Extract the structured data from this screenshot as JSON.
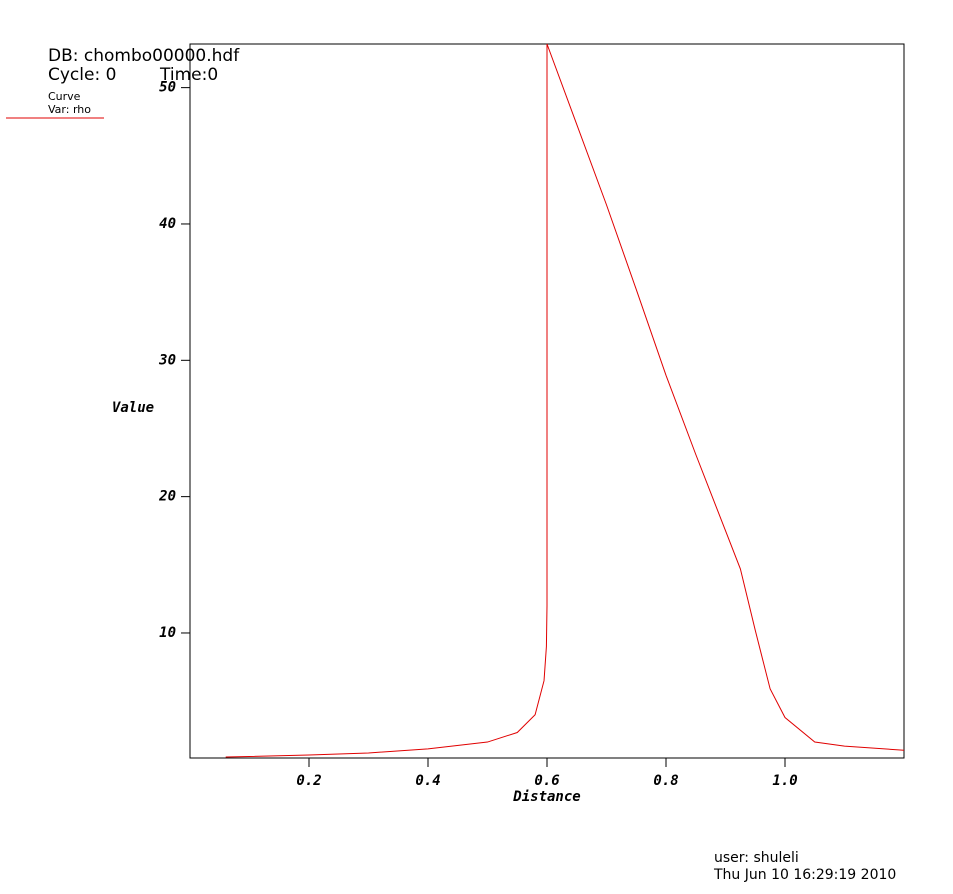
{
  "chart_data": {
    "type": "line",
    "database": "DB: chombo00000.hdf",
    "cycle": "Cycle: 0",
    "time": "Time:0",
    "legend_title": "Curve",
    "x_label": "Distance",
    "y_label": "Value",
    "user": "user: shuleli",
    "date": "Thu Jun 10 16:29:19 2010",
    "xlim": [
      0,
      1.2
    ],
    "ylim": [
      0.83,
      53.2
    ],
    "xticks": [
      0.2,
      0.4,
      0.6,
      0.8,
      {
        "value": 1,
        "label": "1.0"
      }
    ],
    "yticks": [
      10,
      20,
      30,
      40,
      50
    ],
    "series": [
      {
        "name": "Var: rho",
        "color": "#e00000",
        "x": [
          0.06,
          0.2,
          0.3,
          0.4,
          0.5,
          0.55,
          0.58,
          0.595,
          0.599,
          0.6,
          0.6,
          0.65,
          0.7,
          0.75,
          0.8,
          0.85,
          0.9,
          0.925,
          0.95,
          0.975,
          1.0,
          1.05,
          1.1,
          1.2
        ],
        "values": [
          0.9,
          1.05,
          1.2,
          1.5,
          2.0,
          2.7,
          4.0,
          6.5,
          9,
          12,
          53.2,
          47.3,
          41.4,
          35.2,
          28.9,
          23.1,
          17.5,
          14.7,
          10.2,
          5.9,
          3.8,
          2.0,
          1.7,
          1.4
        ]
      }
    ]
  }
}
